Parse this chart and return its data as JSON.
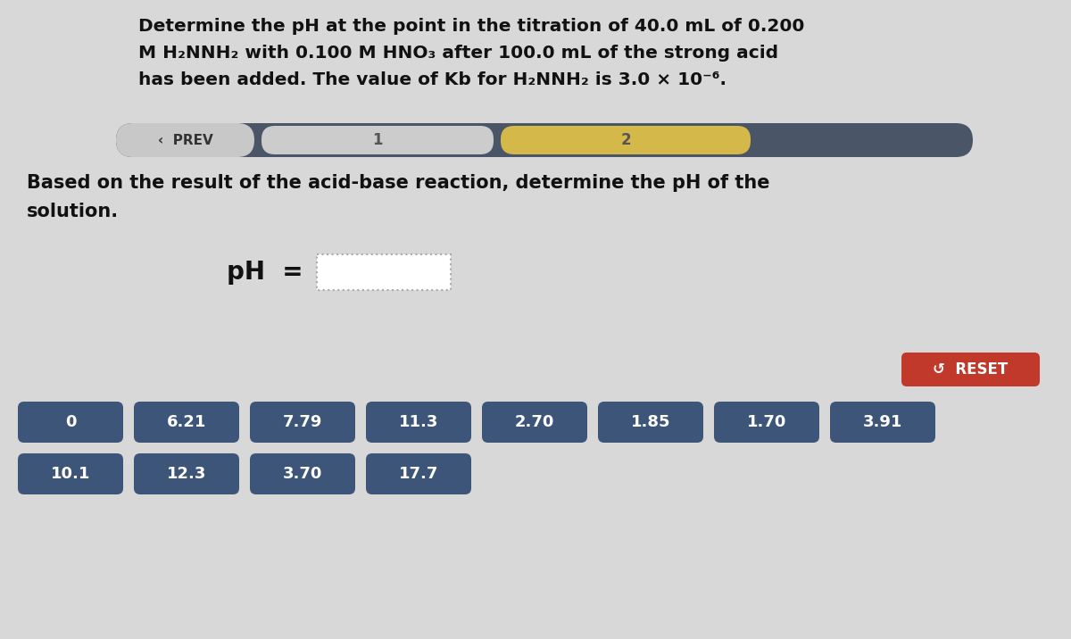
{
  "background_color": "#d8d8d8",
  "title_line1": "Determine the pH at the point in the titration of 40.0 mL of 0.200",
  "title_line2": "M H₂NNH₂ with 0.100 M HNO₃ after 100.0 mL of the strong acid",
  "title_line3": "has been added. The value of Kb for H₂NNH₂ is 3.0 × 10⁻⁶.",
  "nav_bar_bg": "#4a5568",
  "nav_prev_text": "‹  PREV",
  "nav_tab1_text": "1",
  "nav_tab1_bg": "#cccccc",
  "nav_tab2_text": "2",
  "nav_tab2_bg": "#d4b84a",
  "nav_tab3_bg": "#6a7080",
  "question_text_line1": "Based on the result of the acid-base reaction, determine the pH of the",
  "question_text_line2": "solution.",
  "ph_label": "pH  =",
  "reset_text": "↺  RESET",
  "reset_bg": "#c0392b",
  "reset_text_color": "#ffffff",
  "answer_buttons_row1": [
    "0",
    "6.21",
    "7.79",
    "11.3",
    "2.70",
    "1.85",
    "1.70",
    "3.91"
  ],
  "answer_buttons_row2": [
    "10.1",
    "12.3",
    "3.70",
    "17.7"
  ],
  "button_bg": "#3d5578",
  "button_text_color": "#ffffff",
  "button_font_size": 13,
  "title_font_size": 14.5,
  "question_font_size": 15
}
